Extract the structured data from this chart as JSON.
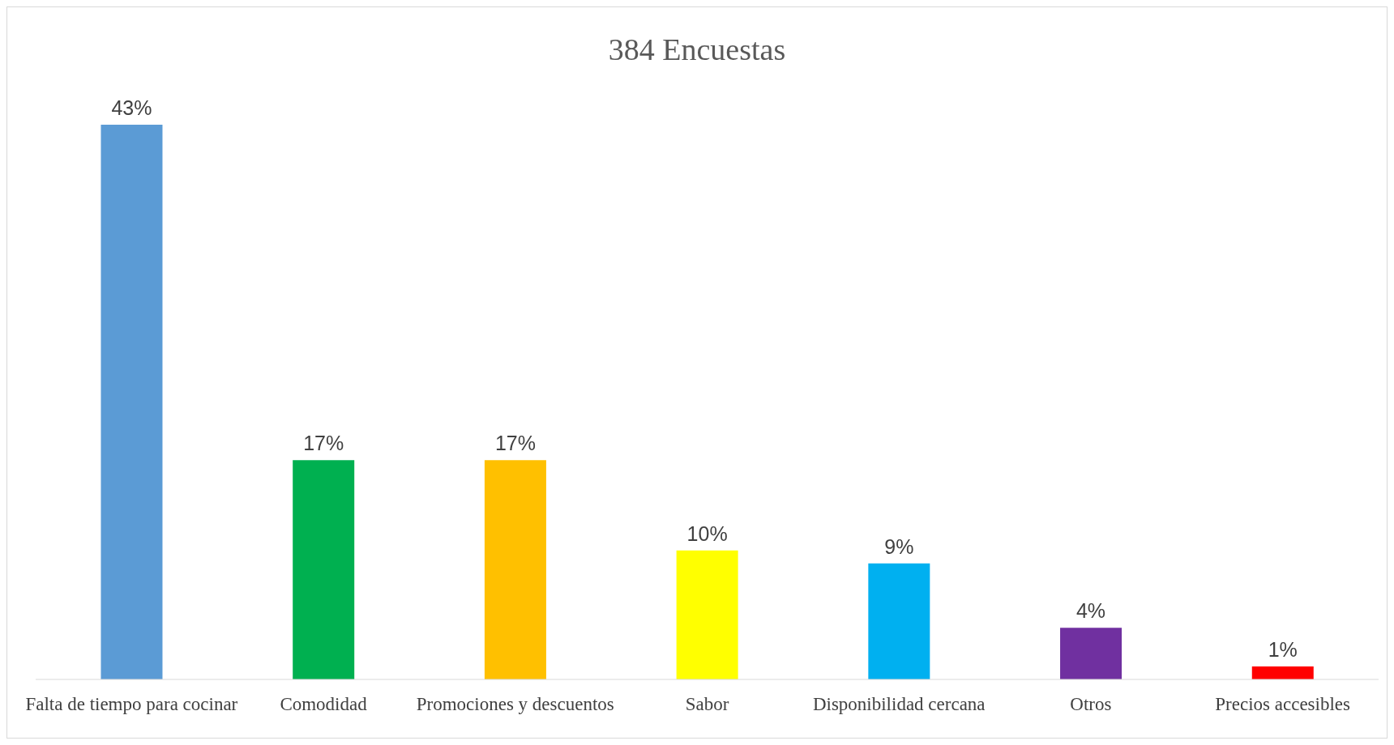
{
  "chart_data": {
    "type": "bar",
    "title": "384 Encuestas",
    "categories": [
      "Falta de tiempo para cocinar",
      "Comodidad",
      "Promociones y descuentos",
      "Sabor",
      "Disponibilidad cercana",
      "Otros",
      "Precios accesibles"
    ],
    "values": [
      43,
      17,
      17,
      10,
      9,
      4,
      1
    ],
    "value_labels": [
      "43%",
      "17%",
      "17%",
      "10%",
      "9%",
      "4%",
      "1%"
    ],
    "colors": [
      "#5b9bd5",
      "#00b050",
      "#ffc000",
      "#ffff00",
      "#00b0f0",
      "#7030a0",
      "#ff0000"
    ],
    "grid": false,
    "legend": false
  }
}
